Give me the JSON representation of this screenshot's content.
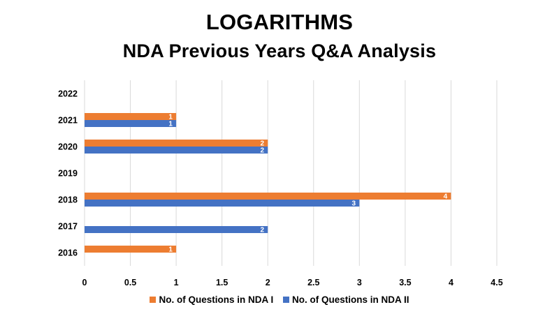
{
  "chart_data": {
    "type": "bar",
    "orientation": "horizontal",
    "title": "LOGARITHMS",
    "subtitle": "NDA Previous Years Q&A Analysis",
    "categories": [
      "2016",
      "2017",
      "2018",
      "2019",
      "2020",
      "2021",
      "2022"
    ],
    "series": [
      {
        "name": "No. of Questions in NDA I",
        "color": "#ED7D31",
        "values": [
          1,
          null,
          4,
          null,
          2,
          1,
          null
        ]
      },
      {
        "name": "No. of Questions in NDA II",
        "color": "#4472C4",
        "values": [
          null,
          2,
          3,
          null,
          2,
          1,
          null
        ]
      }
    ],
    "x_ticks": [
      "0",
      "0.5",
      "1",
      "1.5",
      "2",
      "2.5",
      "3",
      "3.5",
      "4",
      "4.5"
    ],
    "xlim": [
      0,
      4.5
    ],
    "grid": true,
    "data_labels": true,
    "legend_position": "bottom"
  }
}
